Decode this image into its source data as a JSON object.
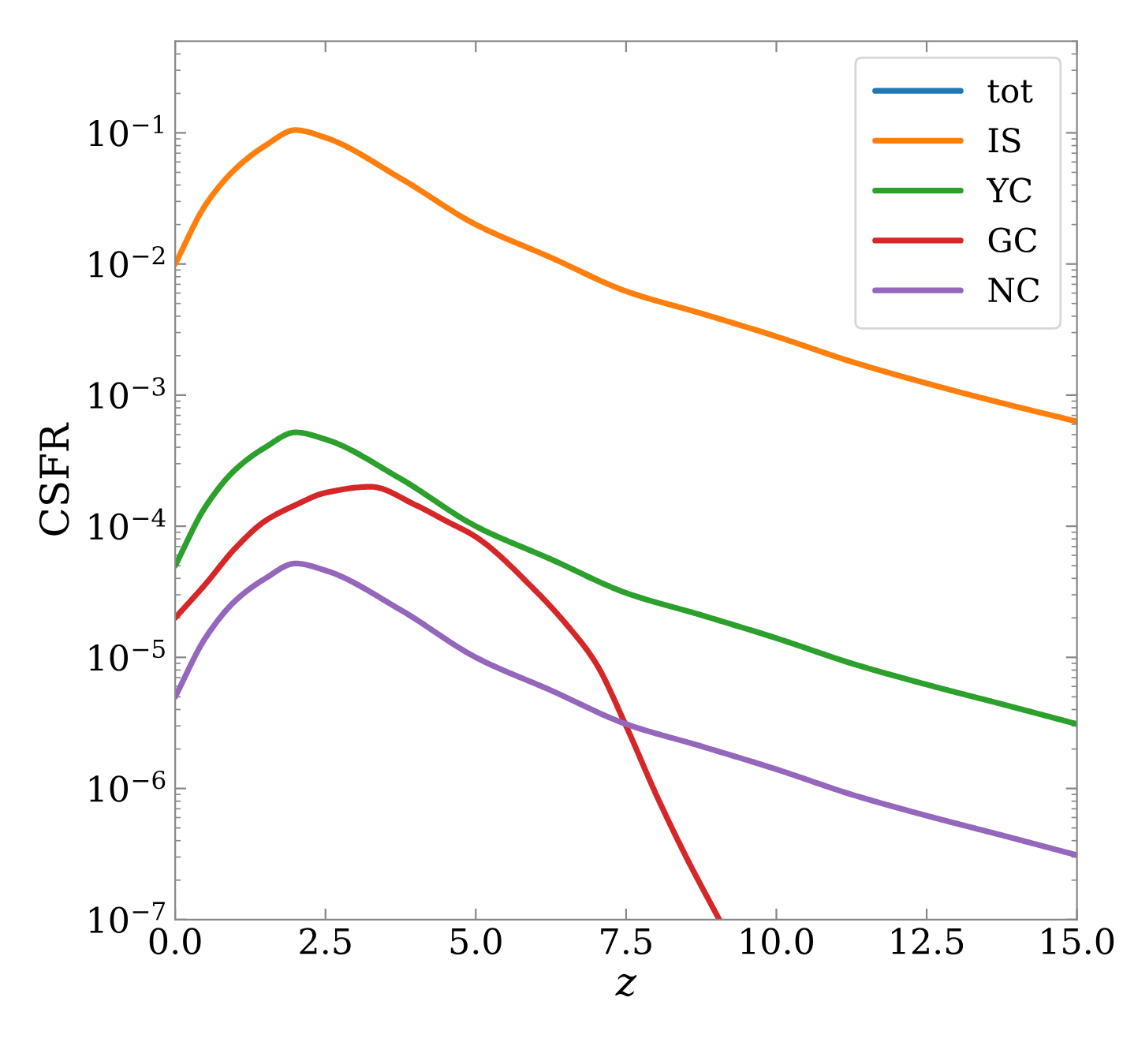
{
  "chart_data": {
    "type": "line",
    "xlabel": "z",
    "ylabel": "CSFR",
    "log": "y",
    "legend": "top right",
    "grid": false,
    "line_style": "solid",
    "marker": "none",
    "xlim": [
      0,
      15
    ],
    "ylim": [
      1e-07,
      0.5
    ],
    "xticks": [
      {
        "value": 0,
        "label": "0.0"
      },
      {
        "value": 2.5,
        "label": "2.5"
      },
      {
        "value": 5,
        "label": "5.0"
      },
      {
        "value": 7.5,
        "label": "7.5"
      },
      {
        "value": 10,
        "label": "10.0"
      },
      {
        "value": 12.5,
        "label": "12.5"
      },
      {
        "value": 15,
        "label": "15.0"
      }
    ],
    "yticks": [
      {
        "value": 1e-07,
        "label": "10$^{−7}$"
      },
      {
        "value": 1e-06,
        "label": "10$^{−6}$"
      },
      {
        "value": 1e-05,
        "label": "10$^{−5}$"
      },
      {
        "value": 0.0001,
        "label": "10$^{−4}$"
      },
      {
        "value": 0.001,
        "label": "10$^{−3}$"
      },
      {
        "value": 0.01,
        "label": "10$^{−2}$"
      },
      {
        "value": 0.1,
        "label": "10$^{−1}$"
      }
    ],
    "series": [
      {
        "name": "tot",
        "color": "#1f77b4"
      },
      {
        "name": "IS",
        "color": "#ff7f0e",
        "x": [
          0,
          0.5,
          1,
          1.5,
          2,
          2.5,
          3.75,
          5,
          6.25,
          7.5,
          8.75,
          10,
          11.25,
          12.5,
          13.75,
          15
        ],
        "values": [
          0.01,
          0.028,
          0.053,
          0.08,
          0.105,
          0.092,
          0.045,
          0.02,
          0.0112,
          0.0062,
          0.0042,
          0.0028,
          0.0018,
          0.00123,
          0.00087,
          0.00063
        ]
      },
      {
        "name": "YC",
        "color": "#2ca02c",
        "x": [
          0,
          0.5,
          1,
          1.5,
          2,
          2.5,
          3.75,
          5,
          6.25,
          7.5,
          8.75,
          10,
          11.25,
          12.5,
          13.75,
          15
        ],
        "values": [
          5e-05,
          0.00014,
          0.00027,
          0.0004,
          0.00052,
          0.00046,
          0.00023,
          0.0001,
          5.6e-05,
          3.1e-05,
          2.1e-05,
          1.4e-05,
          9e-06,
          6.2e-06,
          4.4e-06,
          3.1e-06
        ]
      },
      {
        "name": "GC",
        "color": "#d62728",
        "x": [
          0,
          0.5,
          1,
          1.5,
          2,
          2.5,
          3.25,
          4,
          4.5,
          5,
          6,
          6.5,
          7,
          7.5,
          8,
          8.5,
          9.05
        ],
        "values": [
          2e-05,
          3.6e-05,
          6.8e-05,
          0.00011,
          0.000145,
          0.00018,
          0.0002,
          0.000145,
          0.00011,
          8.3e-05,
          3.2e-05,
          1.8e-05,
          9e-06,
          3e-06,
          9e-07,
          3e-07,
          1e-07
        ]
      },
      {
        "name": "NC",
        "color": "#9467bd",
        "x": [
          0,
          0.5,
          1,
          1.5,
          2,
          2.5,
          3.75,
          5,
          6.25,
          7.5,
          8.75,
          10,
          11.25,
          12.5,
          13.75,
          15
        ],
        "values": [
          5e-06,
          1.4e-05,
          2.7e-05,
          4e-05,
          5.2e-05,
          4.6e-05,
          2.3e-05,
          1e-05,
          5.6e-06,
          3.1e-06,
          2.1e-06,
          1.4e-06,
          9e-07,
          6.2e-07,
          4.4e-07,
          3.1e-07
        ]
      }
    ]
  }
}
